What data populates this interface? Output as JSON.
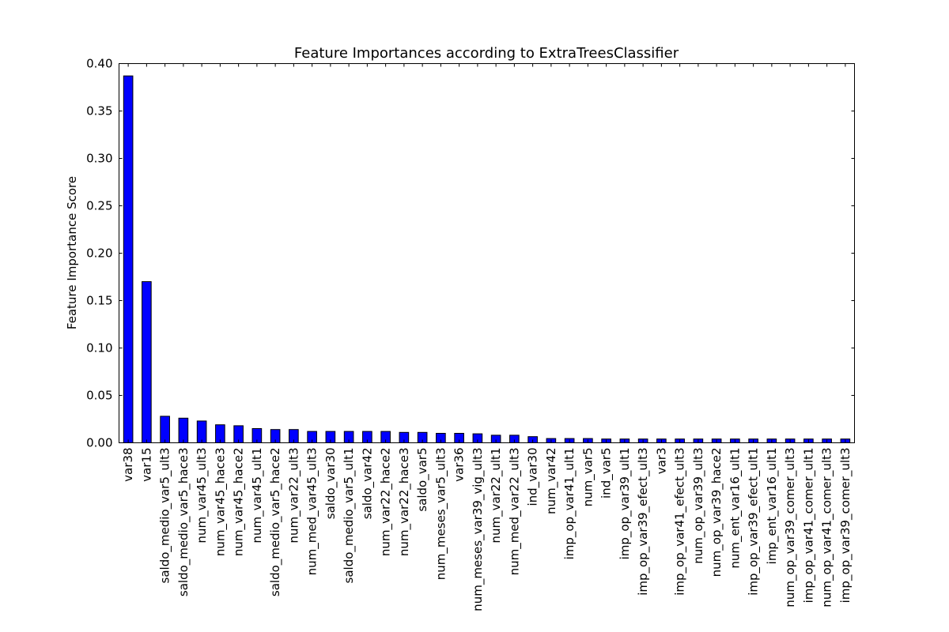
{
  "chart_data": {
    "type": "bar",
    "title": "Feature Importances according to ExtraTreesClassifier",
    "xlabel": "",
    "ylabel": "Feature Importance Score",
    "ylim": [
      0,
      0.4
    ],
    "yticks": [
      "0.00",
      "0.05",
      "0.10",
      "0.15",
      "0.20",
      "0.25",
      "0.30",
      "0.35",
      "0.40"
    ],
    "grid": false,
    "bar_color": "#0000ff",
    "categories": [
      "var38",
      "var15",
      "saldo_medio_var5_ult3",
      "saldo_medio_var5_hace3",
      "num_var45_ult3",
      "num_var45_hace3",
      "num_var45_hace2",
      "num_var45_ult1",
      "saldo_medio_var5_hace2",
      "num_var22_ult3",
      "num_med_var45_ult3",
      "saldo_var30",
      "saldo_medio_var5_ult1",
      "saldo_var42",
      "num_var22_hace2",
      "num_var22_hace3",
      "saldo_var5",
      "num_meses_var5_ult3",
      "var36",
      "num_meses_var39_vig_ult3",
      "num_var22_ult1",
      "num_med_var22_ult3",
      "ind_var30",
      "num_var42",
      "imp_op_var41_ult1",
      "num_var5",
      "ind_var5",
      "imp_op_var39_ult1",
      "imp_op_var39_efect_ult3",
      "var3",
      "imp_op_var41_efect_ult3",
      "num_op_var39_ult3",
      "num_op_var39_hace2",
      "num_ent_var16_ult1",
      "imp_op_var39_efect_ult1",
      "imp_ent_var16_ult1",
      "num_op_var39_comer_ult3",
      "imp_op_var41_comer_ult1",
      "num_op_var41_comer_ult3",
      "imp_op_var39_comer_ult3"
    ],
    "values": [
      0.387,
      0.17,
      0.028,
      0.026,
      0.023,
      0.019,
      0.018,
      0.015,
      0.014,
      0.014,
      0.012,
      0.012,
      0.012,
      0.012,
      0.012,
      0.011,
      0.011,
      0.01,
      0.01,
      0.0095,
      0.008,
      0.008,
      0.0065,
      0.0045,
      0.0045,
      0.0045,
      0.004,
      0.004,
      0.004,
      0.004,
      0.004,
      0.004,
      0.004,
      0.004,
      0.004,
      0.004,
      0.004,
      0.004,
      0.004,
      0.004
    ]
  }
}
